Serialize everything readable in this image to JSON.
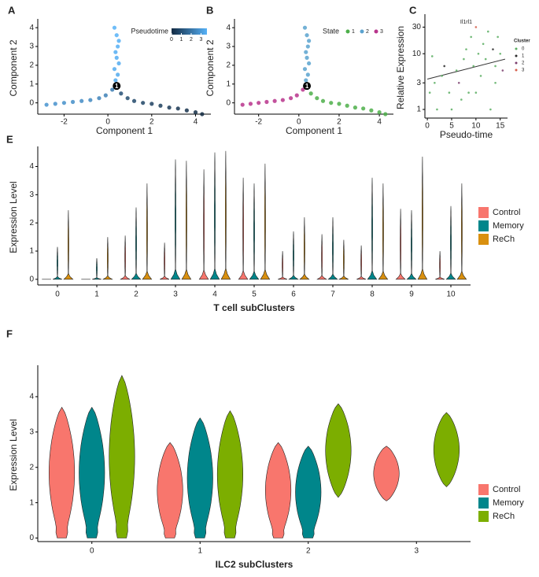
{
  "chart_data": [
    {
      "type": "scatter",
      "panel_label": "A",
      "x_label": "Component 1",
      "y_label": "Component 2",
      "xlim": [
        -3.2,
        4.7
      ],
      "ylim": [
        -0.6,
        4.3
      ],
      "xticks": [
        -2,
        0,
        2,
        4
      ],
      "yticks": [
        0,
        1,
        2,
        3,
        4
      ],
      "x": [
        0.35,
        0.45,
        0.3,
        0.5,
        0.4,
        0.35,
        0.45,
        0.5,
        0.4,
        0.3,
        -2.8,
        -2.4,
        -2.0,
        -1.6,
        -1.2,
        -0.8,
        -0.4,
        -0.1,
        0.2,
        0.6,
        0.9,
        1.2,
        1.6,
        2.0,
        2.4,
        2.8,
        3.2,
        3.6,
        4.0,
        4.3
      ],
      "y": [
        1.2,
        1.5,
        1.8,
        2.1,
        2.4,
        2.7,
        3.0,
        3.3,
        3.6,
        4.0,
        -0.1,
        -0.05,
        0,
        0.05,
        0.1,
        0.15,
        0.25,
        0.4,
        0.7,
        0.5,
        0.25,
        0.1,
        0,
        -0.05,
        -0.15,
        -0.25,
        -0.3,
        -0.4,
        -0.5,
        -0.6
      ],
      "pseudotime": [
        3.4,
        3.4,
        3.45,
        3.45,
        3.5,
        3.5,
        3.55,
        3.55,
        3.6,
        3.6,
        2.8,
        2.75,
        2.7,
        2.65,
        2.6,
        2.5,
        2.4,
        2.3,
        2.2,
        1.0,
        0.9,
        0.8,
        0.7,
        0.6,
        0.5,
        0.4,
        0.3,
        0.2,
        0.1,
        0
      ],
      "legend_title": "Pseudotime",
      "colorbar_ticks": [
        0,
        1,
        2,
        3
      ],
      "color_lim": [
        0,
        3.6
      ],
      "color_range": [
        "#132b43",
        "#56b1f7"
      ],
      "annotations": [
        {
          "text": "1",
          "x": 0.4,
          "y": 0.9
        }
      ]
    },
    {
      "type": "scatter",
      "panel_label": "B",
      "x_label": "Component 1",
      "y_label": "Component 2",
      "xlim": [
        -3.2,
        4.7
      ],
      "ylim": [
        -0.6,
        4.3
      ],
      "xticks": [
        -2,
        0,
        2,
        4
      ],
      "yticks": [
        0,
        1,
        2,
        3,
        4
      ],
      "x": [
        0.35,
        0.45,
        0.3,
        0.5,
        0.4,
        0.35,
        0.45,
        0.5,
        0.4,
        0.3,
        -2.8,
        -2.4,
        -2.0,
        -1.6,
        -1.2,
        -0.8,
        -0.4,
        -0.1,
        0.2,
        0.6,
        0.9,
        1.2,
        1.6,
        2.0,
        2.4,
        2.8,
        3.2,
        3.6,
        4.0,
        4.3
      ],
      "y": [
        1.2,
        1.5,
        1.8,
        2.1,
        2.4,
        2.7,
        3.0,
        3.3,
        3.6,
        4.0,
        -0.1,
        -0.05,
        0,
        0.05,
        0.1,
        0.15,
        0.25,
        0.4,
        0.7,
        0.5,
        0.25,
        0.1,
        0,
        -0.05,
        -0.15,
        -0.25,
        -0.3,
        -0.4,
        -0.5,
        -0.6
      ],
      "state": [
        2,
        2,
        2,
        2,
        2,
        2,
        2,
        2,
        2,
        2,
        3,
        3,
        3,
        3,
        3,
        3,
        3,
        3,
        3,
        1,
        1,
        1,
        1,
        1,
        1,
        1,
        1,
        1,
        1,
        1
      ],
      "legend_title": "State",
      "states": [
        1,
        2,
        3
      ],
      "state_colors": [
        "#4daf4a",
        "#5ba3cf",
        "#b8348c"
      ],
      "annotations": [
        {
          "text": "1",
          "x": 0.4,
          "y": 0.9
        }
      ]
    },
    {
      "type": "scatter",
      "panel_label": "C",
      "title": "Il1rl1",
      "x_label": "Pseudo-time",
      "y_label": "Relative Expression",
      "log_y": true,
      "xlim": [
        -0.5,
        16.5
      ],
      "ylim": [
        0.7,
        45
      ],
      "xticks": [
        0,
        5,
        10,
        15
      ],
      "yticks": [
        1,
        3,
        10,
        30
      ],
      "x": [
        0.5,
        1.5,
        2,
        3,
        3.5,
        4.5,
        5,
        6,
        6.5,
        7.5,
        8,
        8.5,
        9,
        9.5,
        10,
        10.5,
        11,
        11.5,
        12,
        12.5,
        13,
        13.5,
        14,
        14.5,
        15,
        15.5,
        1,
        7,
        10,
        14
      ],
      "y": [
        2,
        3,
        1,
        4,
        6,
        2,
        1,
        5,
        3,
        8,
        12,
        2,
        20,
        6,
        30,
        10,
        4,
        15,
        8,
        25,
        1,
        12,
        6,
        20,
        10,
        5,
        9,
        1.5,
        2,
        3
      ],
      "cluster": [
        0,
        0,
        0,
        0,
        1,
        0,
        0,
        0,
        2,
        0,
        0,
        0,
        0,
        0,
        3,
        0,
        0,
        0,
        0,
        0,
        0,
        1,
        0,
        0,
        0,
        2,
        0,
        0,
        0,
        0
      ],
      "legend_title": "Cluster",
      "clusters": [
        0,
        1,
        2,
        3
      ],
      "cluster_colors": [
        "#5aae61",
        "#2d2d2d",
        "#7b3f6e",
        "#d6604d"
      ],
      "trend": {
        "x": [
          0,
          16
        ],
        "y": [
          3.5,
          8
        ]
      }
    },
    {
      "type": "violin",
      "panel_label": "E",
      "x_label": "T cell subClusters",
      "y_label": "Expression Level",
      "categories": [
        "0",
        "1",
        "2",
        "3",
        "4",
        "5",
        "6",
        "7",
        "8",
        "9",
        "10"
      ],
      "ylim": [
        -0.2,
        4.6
      ],
      "yticks": [
        0,
        1,
        2,
        3,
        4
      ],
      "series": [
        {
          "name": "Control",
          "color": "#f8766d",
          "values": [
            0,
            0,
            1.55,
            1.3,
            3.9,
            3.6,
            1.0,
            1.6,
            1.2,
            2.5,
            1.0
          ]
        },
        {
          "name": "Memory",
          "color": "#00868b",
          "values": [
            1.15,
            0.75,
            2.55,
            4.25,
            4.5,
            3.4,
            1.7,
            2.2,
            3.6,
            2.45,
            2.6
          ]
        },
        {
          "name": "ReCh",
          "color": "#d9900f",
          "values": [
            2.45,
            1.5,
            3.4,
            4.2,
            4.55,
            4.1,
            2.2,
            1.4,
            3.4,
            4.35,
            3.4
          ]
        }
      ]
    },
    {
      "type": "violin",
      "panel_label": "F",
      "x_label": "ILC2 subClusters",
      "y_label": "Expression Level",
      "categories": [
        "0",
        "1",
        "2",
        "3"
      ],
      "ylim": [
        -0.1,
        4.8
      ],
      "yticks": [
        0,
        1,
        2,
        3,
        4
      ],
      "series": [
        {
          "name": "Control",
          "color": "#f8766d",
          "values": [
            3.7,
            2.7,
            2.7,
            2.6
          ],
          "min_values": [
            0,
            0,
            0,
            1.05
          ]
        },
        {
          "name": "Memory",
          "color": "#00868b",
          "values": [
            3.7,
            3.4,
            2.6,
            null
          ],
          "min_values": [
            0,
            0,
            0,
            null
          ]
        },
        {
          "name": "ReCh",
          "color": "#7cae00",
          "values": [
            4.6,
            3.6,
            3.8,
            3.55
          ],
          "min_values": [
            0,
            0,
            1.15,
            1.45
          ]
        }
      ]
    }
  ]
}
